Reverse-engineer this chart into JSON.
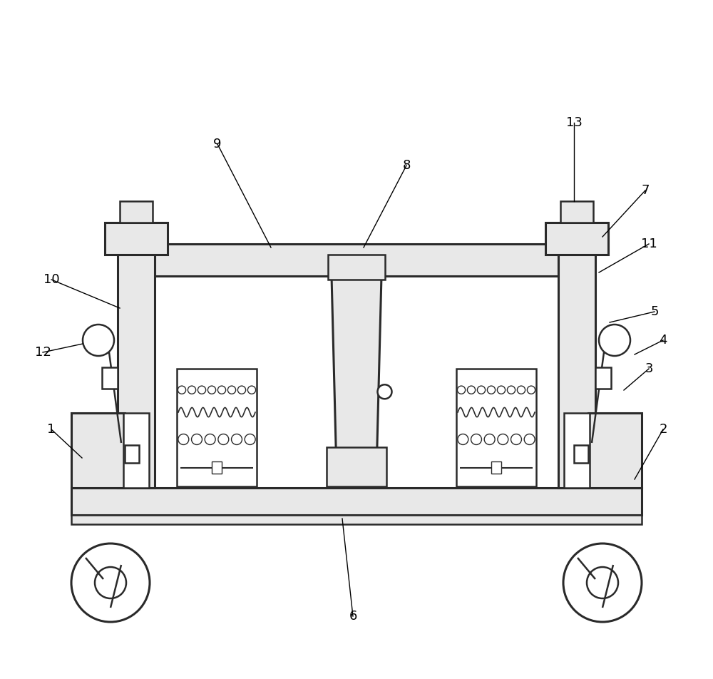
{
  "bg": "white",
  "lc": "#2a2a2a",
  "lw": 1.8,
  "tlw": 2.2,
  "gray": "#e8e8e8",
  "dgray": "#cccccc"
}
